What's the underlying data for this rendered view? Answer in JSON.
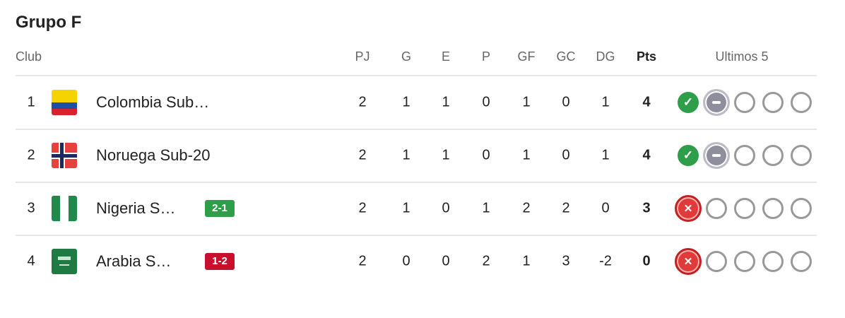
{
  "title": "Grupo F",
  "headers": {
    "club": "Club",
    "pj": "PJ",
    "g": "G",
    "e": "E",
    "p": "P",
    "gf": "GF",
    "gc": "GC",
    "dg": "DG",
    "pts": "Pts",
    "last5": "Ultimos 5"
  },
  "colors": {
    "win": "#2e9e4a",
    "draw": "#8e8e9c",
    "loss": "#e03a3a"
  },
  "rows": [
    {
      "pos": "1",
      "name": "Colombia Sub…",
      "flag": "colombia-flag",
      "badge": null,
      "pj": "2",
      "g": "1",
      "e": "1",
      "p": "0",
      "gf": "1",
      "gc": "0",
      "dg": "1",
      "pts": "4",
      "last5": [
        "W",
        "D",
        "",
        "",
        ""
      ]
    },
    {
      "pos": "2",
      "name": "Noruega Sub-20",
      "flag": "norway-flag",
      "badge": null,
      "pj": "2",
      "g": "1",
      "e": "1",
      "p": "0",
      "gf": "1",
      "gc": "0",
      "dg": "1",
      "pts": "4",
      "last5": [
        "W",
        "D",
        "",
        "",
        ""
      ]
    },
    {
      "pos": "3",
      "name": "Nigeria S…",
      "flag": "nigeria-flag",
      "badge": {
        "text": "2-1",
        "color": "#2e9e4a"
      },
      "pj": "2",
      "g": "1",
      "e": "0",
      "p": "1",
      "gf": "2",
      "gc": "2",
      "dg": "0",
      "pts": "3",
      "last5": [
        "L",
        "",
        "",
        "",
        ""
      ]
    },
    {
      "pos": "4",
      "name": "Arabia S…",
      "flag": "saudi-arabia-flag",
      "badge": {
        "text": "1-2",
        "color": "#c8102e"
      },
      "pj": "2",
      "g": "0",
      "e": "0",
      "p": "2",
      "gf": "1",
      "gc": "3",
      "dg": "-2",
      "pts": "0",
      "last5": [
        "L",
        "",
        "",
        "",
        ""
      ]
    }
  ]
}
